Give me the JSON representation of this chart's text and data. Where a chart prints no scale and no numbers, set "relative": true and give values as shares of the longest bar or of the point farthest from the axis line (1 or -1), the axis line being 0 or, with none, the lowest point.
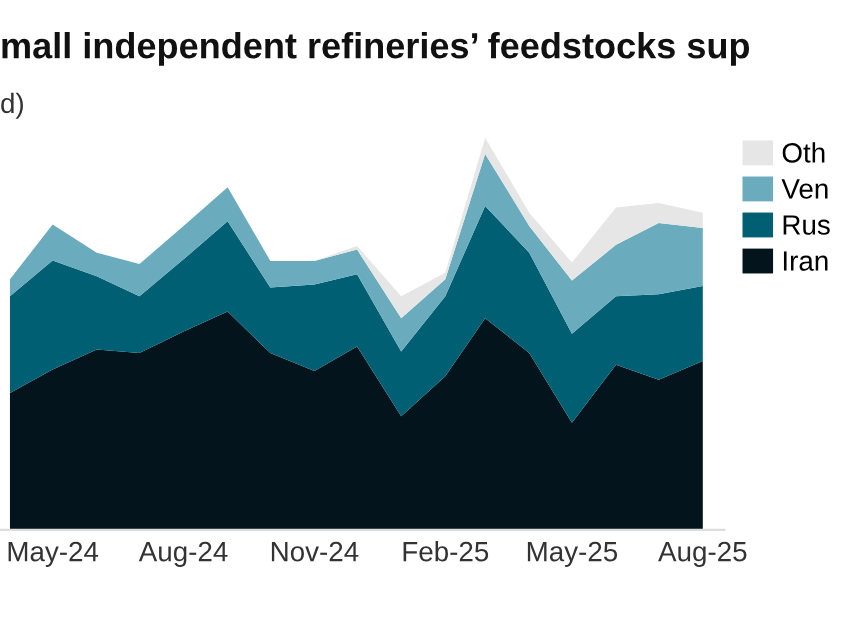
{
  "chart_data": {
    "type": "area",
    "stacked": true,
    "relative": true,
    "title": "mall independent refineries’ feedstocks sup",
    "subtitle": "d)",
    "x": [
      "2024-04",
      "2024-05",
      "2024-06",
      "2024-07",
      "2024-08",
      "2024-09",
      "2024-10",
      "2024-11",
      "2024-12",
      "2025-01",
      "2025-02",
      "2025-03",
      "2025-04",
      "2025-05",
      "2025-06",
      "2025-07",
      "2025-08"
    ],
    "xlim": [
      "2024-03-25",
      "2025-08-16"
    ],
    "xticks": [
      {
        "value": "2024-05",
        "label": "May-24"
      },
      {
        "value": "2024-08",
        "label": "Aug-24"
      },
      {
        "value": "2024-11",
        "label": "Nov-24"
      },
      {
        "value": "2025-02",
        "label": "Feb-25"
      },
      {
        "value": "2025-05",
        "label": "May-25"
      },
      {
        "value": "2025-08",
        "label": "Aug-25"
      }
    ],
    "legend": "right",
    "series": [
      {
        "name": "Iran",
        "color": "#04141c",
        "values": [
          0.349,
          0.409,
          0.46,
          0.451,
          0.506,
          0.557,
          0.451,
          0.405,
          0.468,
          0.29,
          0.392,
          0.54,
          0.451,
          0.273,
          0.421,
          0.383,
          0.431
        ]
      },
      {
        "name": "Rus",
        "color": "#005f73",
        "values": [
          0.247,
          0.278,
          0.187,
          0.145,
          0.184,
          0.23,
          0.167,
          0.221,
          0.184,
          0.165,
          0.204,
          0.286,
          0.256,
          0.227,
          0.175,
          0.218,
          0.191
        ]
      },
      {
        "name": "Ven",
        "color": "#6aacbd",
        "values": [
          0.043,
          0.092,
          0.06,
          0.082,
          0.085,
          0.087,
          0.068,
          0.06,
          0.063,
          0.085,
          0.043,
          0.133,
          0.068,
          0.136,
          0.131,
          0.182,
          0.148
        ]
      },
      {
        "name": "Oth",
        "color": "#e6e6e6",
        "values": [
          0,
          0,
          0,
          0,
          0,
          0,
          0,
          0,
          0.009,
          0.056,
          0.017,
          0.041,
          0.034,
          0.046,
          0.095,
          0.051,
          0.039
        ]
      }
    ]
  }
}
